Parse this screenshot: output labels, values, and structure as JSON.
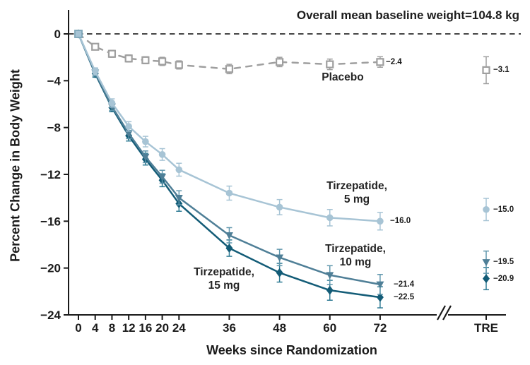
{
  "figure": {
    "annotation": "Overall mean baseline weight=104.8 kg",
    "x_axis_title": "Weeks since Randomization",
    "y_axis_title": "Percent Change in Body Weight"
  },
  "chart_data": {
    "type": "line",
    "title": "Overall mean baseline weight=104.8 kg",
    "xlabel": "Weeks since Randomization",
    "ylabel": "Percent Change in Body Weight",
    "x": [
      0,
      4,
      8,
      12,
      16,
      20,
      24,
      36,
      48,
      60,
      72
    ],
    "x_tick_labels": [
      "0",
      "4",
      "8",
      "12",
      "16",
      "20",
      "24",
      "36",
      "48",
      "60",
      "72"
    ],
    "x_break_label": "TRE",
    "y_ticks": [
      0,
      -4,
      -8,
      -12,
      -16,
      -20,
      -24
    ],
    "y_tick_labels": [
      "0",
      "−4",
      "−8",
      "−12",
      "−16",
      "−20",
      "−24"
    ],
    "ylim": [
      -24,
      0
    ],
    "grid": false,
    "legend_position": "inline-labels",
    "zero_reference_line": true,
    "axis_break_after_week": 72,
    "series": [
      {
        "name": "Placebo",
        "label_lines": [
          "Placebo"
        ],
        "marker": "square-open",
        "line_style": "dashed",
        "color": "#9f9f9f",
        "err_color": "#9f9f9f",
        "values": [
          0,
          -1.1,
          -1.7,
          -2.1,
          -2.25,
          -2.35,
          -2.65,
          -3.0,
          -2.4,
          -2.6,
          -2.4
        ],
        "errors": [
          0,
          0.25,
          0.3,
          0.3,
          0.3,
          0.35,
          0.35,
          0.4,
          0.4,
          0.45,
          0.45
        ],
        "end_label": "−2.4",
        "tre": {
          "value": -3.1,
          "error": 1.15,
          "label": "−3.1"
        }
      },
      {
        "name": "Tirzepatide, 5 mg",
        "label_lines": [
          "Tirzepatide,",
          "5 mg"
        ],
        "marker": "circle",
        "line_style": "solid",
        "color": "#a7c4d5",
        "err_color": "#a7c4d5",
        "values": [
          0,
          -3.2,
          -5.9,
          -7.9,
          -9.2,
          -10.3,
          -11.6,
          -13.6,
          -14.8,
          -15.7,
          -16.0
        ],
        "errors": [
          0,
          0.3,
          0.35,
          0.4,
          0.45,
          0.5,
          0.55,
          0.6,
          0.65,
          0.7,
          0.75
        ],
        "end_label": "−16.0",
        "tre": {
          "value": -15.0,
          "error": 0.95,
          "label": "−15.0"
        }
      },
      {
        "name": "Tirzepatide, 10 mg",
        "label_lines": [
          "Tirzepatide,",
          "10 mg"
        ],
        "marker": "triangle-down",
        "line_style": "solid",
        "color": "#4f7f97",
        "err_color": "#6097ad",
        "values": [
          0,
          -3.3,
          -6.2,
          -8.5,
          -10.5,
          -12.2,
          -14.0,
          -17.2,
          -19.1,
          -20.6,
          -21.4
        ],
        "errors": [
          0,
          0.3,
          0.35,
          0.45,
          0.5,
          0.55,
          0.6,
          0.65,
          0.7,
          0.8,
          0.85
        ],
        "end_label": "−21.4",
        "tre": {
          "value": -19.5,
          "error": 0.95,
          "label": "−19.5"
        }
      },
      {
        "name": "Tirzepatide, 15 mg",
        "label_lines": [
          "Tirzepatide,",
          "15 mg"
        ],
        "marker": "diamond",
        "line_style": "solid",
        "color": "#135c77",
        "err_color": "#2f7b94",
        "values": [
          0,
          -3.4,
          -6.3,
          -8.7,
          -10.7,
          -12.5,
          -14.5,
          -18.3,
          -20.4,
          -21.9,
          -22.5
        ],
        "errors": [
          0,
          0.3,
          0.35,
          0.45,
          0.5,
          0.55,
          0.65,
          0.7,
          0.8,
          0.85,
          0.9
        ],
        "end_label": "−22.5",
        "tre": {
          "value": -20.9,
          "error": 0.95,
          "label": "−20.9"
        }
      }
    ]
  }
}
